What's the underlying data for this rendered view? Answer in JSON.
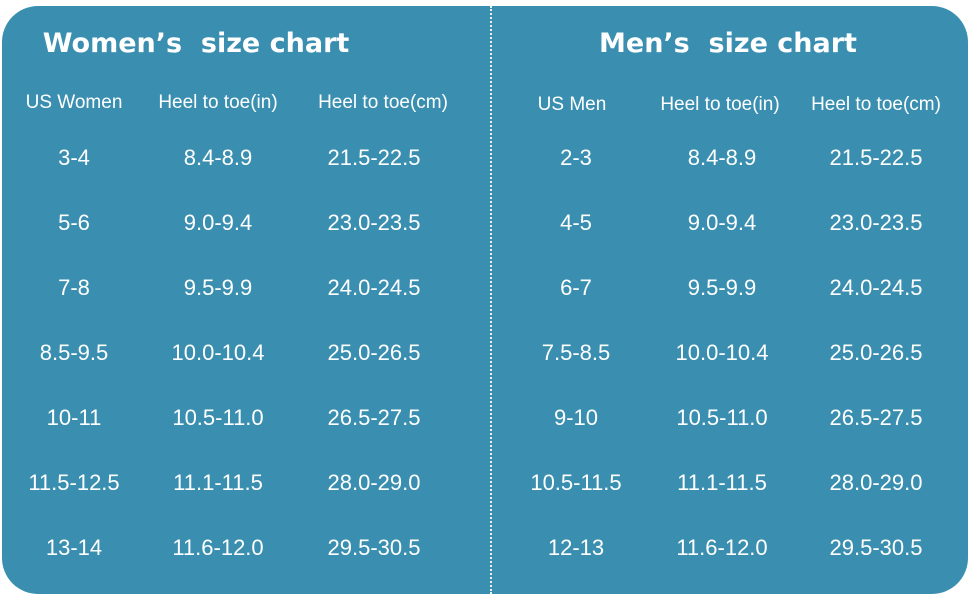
{
  "women": {
    "title": "Women’s  size chart",
    "headers": [
      "US Women",
      "Heel to toe(in)",
      "Heel to toe(cm)"
    ],
    "rows": [
      [
        "3-4",
        "8.4-8.9",
        "21.5-22.5"
      ],
      [
        "5-6",
        "9.0-9.4",
        "23.0-23.5"
      ],
      [
        "7-8",
        "9.5-9.9",
        "24.0-24.5"
      ],
      [
        "8.5-9.5",
        "10.0-10.4",
        "25.0-26.5"
      ],
      [
        "10-11",
        "10.5-11.0",
        "26.5-27.5"
      ],
      [
        "11.5-12.5",
        "11.1-11.5",
        "28.0-29.0"
      ],
      [
        "13-14",
        "11.6-12.0",
        "29.5-30.5"
      ]
    ]
  },
  "men": {
    "title": "Men’s  size chart",
    "headers": [
      "US Men",
      "Heel to toe(in)",
      "Heel to toe(cm)"
    ],
    "rows": [
      [
        "2-3",
        "8.4-8.9",
        "21.5-22.5"
      ],
      [
        "4-5",
        "9.0-9.4",
        "23.0-23.5"
      ],
      [
        "6-7",
        "9.5-9.9",
        "24.0-24.5"
      ],
      [
        "7.5-8.5",
        "10.0-10.4",
        "25.0-26.5"
      ],
      [
        "9-10",
        "10.5-11.0",
        "26.5-27.5"
      ],
      [
        "10.5-11.5",
        "11.1-11.5",
        "28.0-29.0"
      ],
      [
        "12-13",
        "11.6-12.0",
        "29.5-30.5"
      ]
    ]
  },
  "colors": {
    "background": "#3a8fb0",
    "text": "#ffffff"
  }
}
